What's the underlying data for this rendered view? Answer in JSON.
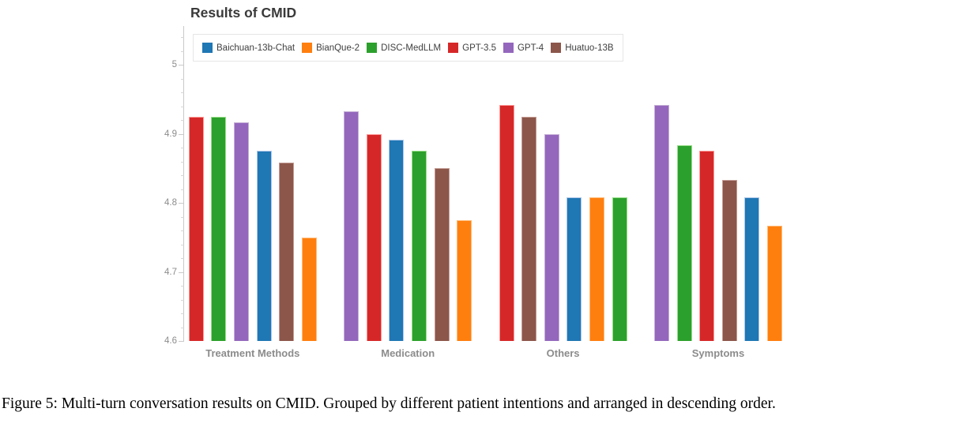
{
  "figure": {
    "caption": "Figure 5: Multi-turn conversation results on CMID. Grouped by different patient intentions and arranged in descending order."
  },
  "chart_data": {
    "type": "bar",
    "title": "Results of CMID",
    "xlabel": "",
    "ylabel": "",
    "grid": false,
    "legend_position": "top-left-inside",
    "ylim": [
      4.6,
      5.056
    ],
    "minor_tick_step": 0.02,
    "yticks": [
      {
        "value": 5.0,
        "label": "5"
      },
      {
        "value": 4.9,
        "label": "4.9"
      },
      {
        "value": 4.8,
        "label": "4.8"
      },
      {
        "value": 4.7,
        "label": "4.7"
      },
      {
        "value": 4.6,
        "label": "4.6"
      }
    ],
    "categories": [
      "Treatment Methods",
      "Medication",
      "Others",
      "Symptoms"
    ],
    "series": [
      {
        "name": "Baichuan-13b-Chat",
        "fill": "#1f77b4",
        "edge": "#aec7e8",
        "values": [
          4.875,
          4.892,
          4.808,
          4.808
        ]
      },
      {
        "name": "BianQue-2",
        "fill": "#ff7f0e",
        "edge": "#ffbb78",
        "values": [
          4.75,
          4.775,
          4.808,
          4.767
        ]
      },
      {
        "name": "DISC-MedLLM",
        "fill": "#2ca02c",
        "edge": "#98df8a",
        "values": [
          4.925,
          4.875,
          4.808,
          4.883
        ]
      },
      {
        "name": "GPT-3.5",
        "fill": "#d62728",
        "edge": "#ff9896",
        "values": [
          4.925,
          4.9,
          4.942,
          4.875
        ]
      },
      {
        "name": "GPT-4",
        "fill": "#9467bd",
        "edge": "#c5b0d5",
        "values": [
          4.917,
          4.933,
          4.9,
          4.942
        ]
      },
      {
        "name": "Huatuo-13B",
        "fill": "#8c564b",
        "edge": "#c49c94",
        "values": [
          4.858,
          4.85,
          4.925,
          4.833
        ]
      }
    ],
    "bar_order": {
      "Treatment Methods": [
        "GPT-3.5",
        "DISC-MedLLM",
        "GPT-4",
        "Baichuan-13b-Chat",
        "Huatuo-13B",
        "BianQue-2"
      ],
      "Medication": [
        "GPT-4",
        "GPT-3.5",
        "Baichuan-13b-Chat",
        "DISC-MedLLM",
        "Huatuo-13B",
        "BianQue-2"
      ],
      "Others": [
        "GPT-3.5",
        "Huatuo-13B",
        "GPT-4",
        "Baichuan-13b-Chat",
        "BianQue-2",
        "DISC-MedLLM"
      ],
      "Symptoms": [
        "GPT-4",
        "DISC-MedLLM",
        "GPT-3.5",
        "Huatuo-13B",
        "Baichuan-13b-Chat",
        "BianQue-2"
      ]
    }
  }
}
